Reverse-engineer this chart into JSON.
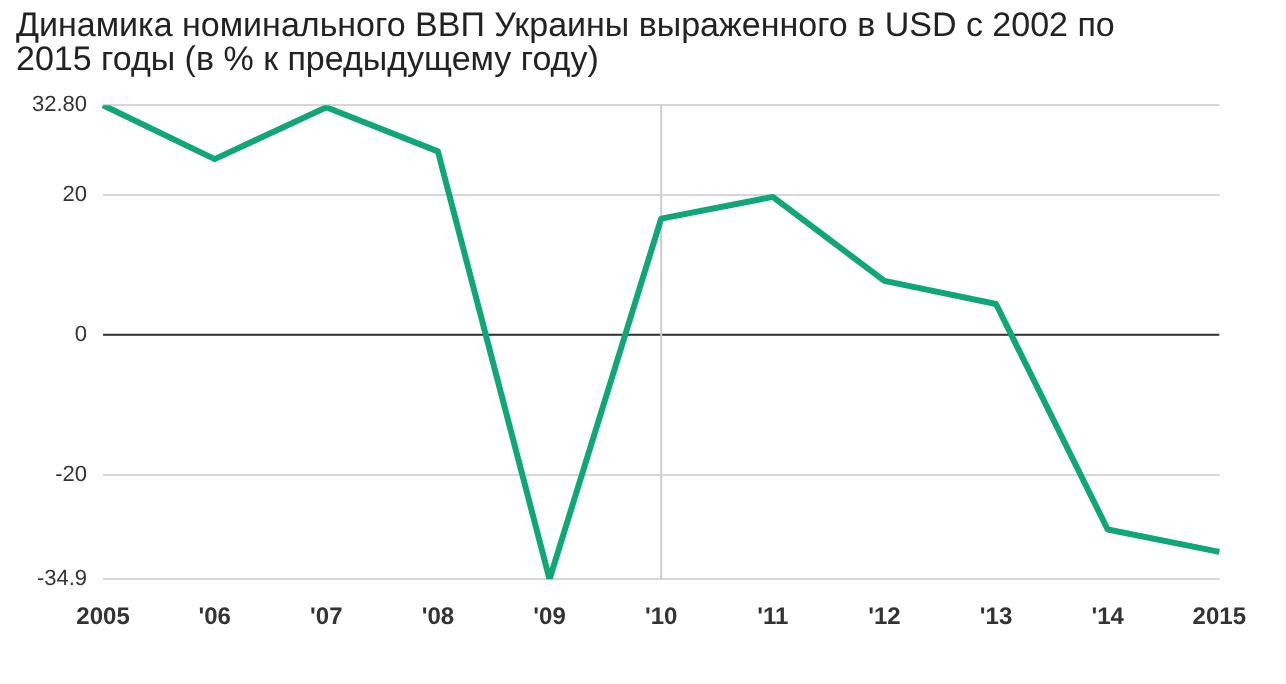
{
  "chart_data": {
    "type": "line",
    "title": "Динамика номинального ВВП Украины выраженного в USD с 2002 по 2015 годы (в % к предыдущему году)",
    "categories": [
      "2005",
      "'06",
      "'07",
      "'08",
      "'09",
      "'10",
      "'11",
      "'12",
      "'13",
      "'14",
      "2015"
    ],
    "series": [
      {
        "color": "#0fa678",
        "values": [
          32.8,
          25.1,
          32.5,
          26.2,
          -34.9,
          16.6,
          19.7,
          7.7,
          4.4,
          -27.8,
          -31.0
        ]
      }
    ],
    "ylim": [
      -34.9,
      32.8
    ],
    "yticks": [
      -34.9,
      -20,
      0,
      20,
      {
        "value": 32.8,
        "label": "32.80"
      }
    ],
    "grid": "y",
    "marker": "none",
    "line_style": "solid",
    "ref_lines": [
      {
        "axis": "y",
        "value": 0,
        "color": "#333333"
      },
      {
        "axis": "x",
        "value": "'10",
        "color": "#cccccc"
      }
    ]
  }
}
